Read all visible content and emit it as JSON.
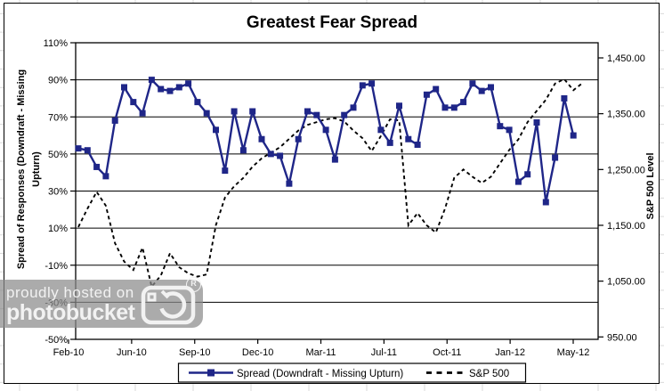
{
  "chart": {
    "title": "Greatest Fear Spread",
    "y_left_title_line1": "Spread of Responses (Downdraft - Missing",
    "y_left_title_line2": "Upturn)",
    "y_right_title": "S&P 500 Level",
    "legend": {
      "series1_label": "Spread (Downdraft - Missing Upturn)",
      "series2_label": "S&P 500"
    },
    "colors": {
      "spread_line": "#1f2688",
      "sp500_line": "#000000",
      "gridline": "#000000",
      "sheet_gridline": "#d9d9d9"
    }
  },
  "chart_data": {
    "type": "line",
    "title": "Greatest Fear Spread",
    "x_tick_labels": [
      "Feb-10",
      "Jun-10",
      "Sep-10",
      "Dec-10",
      "Mar-11",
      "Jul-11",
      "Oct-11",
      "Jan-12",
      "May-12"
    ],
    "y_left_axis": {
      "label": "Spread of Responses (Downdraft - Missing Upturn)",
      "tick_labels": [
        "110%",
        "90%",
        "70%",
        "50%",
        "30%",
        "10%",
        "-10%",
        "-30%",
        "-50%"
      ],
      "tick_values": [
        110,
        90,
        70,
        50,
        30,
        10,
        -10,
        -30,
        -50
      ],
      "min": -50,
      "max": 110,
      "grid": true
    },
    "y_right_axis": {
      "label": "S&P 500 Level",
      "tick_labels": [
        "1,450.00",
        "1,350.00",
        "1,250.00",
        "1,150.00",
        "1,050.00",
        "950.00"
      ],
      "tick_values": [
        1450,
        1350,
        1250,
        1150,
        1050,
        950
      ]
    },
    "legend_position": "bottom",
    "series": [
      {
        "name": "Spread (Downdraft - Missing Upturn)",
        "axis": "left",
        "unit": "%",
        "marker": "square",
        "style": "solid",
        "values": [
          53,
          52,
          43,
          38,
          68,
          86,
          78,
          72,
          90,
          85,
          84,
          86,
          88,
          78,
          72,
          63,
          41,
          73,
          52,
          73,
          58,
          50,
          49,
          34,
          58,
          73,
          71,
          63,
          47,
          71,
          75,
          87,
          88,
          63,
          56,
          76,
          58,
          55,
          82,
          85,
          75,
          75,
          78,
          88,
          84,
          86,
          65,
          63,
          35,
          39,
          67,
          24,
          48,
          80,
          60
        ]
      },
      {
        "name": "S&P 500",
        "axis": "right",
        "marker": "none",
        "style": "dashed",
        "values": [
          1147,
          1180,
          1210,
          1185,
          1118,
          1085,
          1070,
          1110,
          1040,
          1060,
          1100,
          1075,
          1064,
          1058,
          1062,
          1150,
          1200,
          1220,
          1235,
          1255,
          1270,
          1280,
          1290,
          1305,
          1320,
          1330,
          1335,
          1340,
          1342,
          1336,
          1320,
          1306,
          1283,
          1310,
          1340,
          1338,
          1150,
          1172,
          1150,
          1137,
          1180,
          1235,
          1250,
          1237,
          1226,
          1237,
          1261,
          1285,
          1304,
          1335,
          1355,
          1375,
          1404,
          1412,
          1392,
          1405
        ]
      }
    ]
  },
  "watermark": {
    "line1": "proudly hosted on",
    "line2": "photobucket",
    "reg": "R"
  }
}
